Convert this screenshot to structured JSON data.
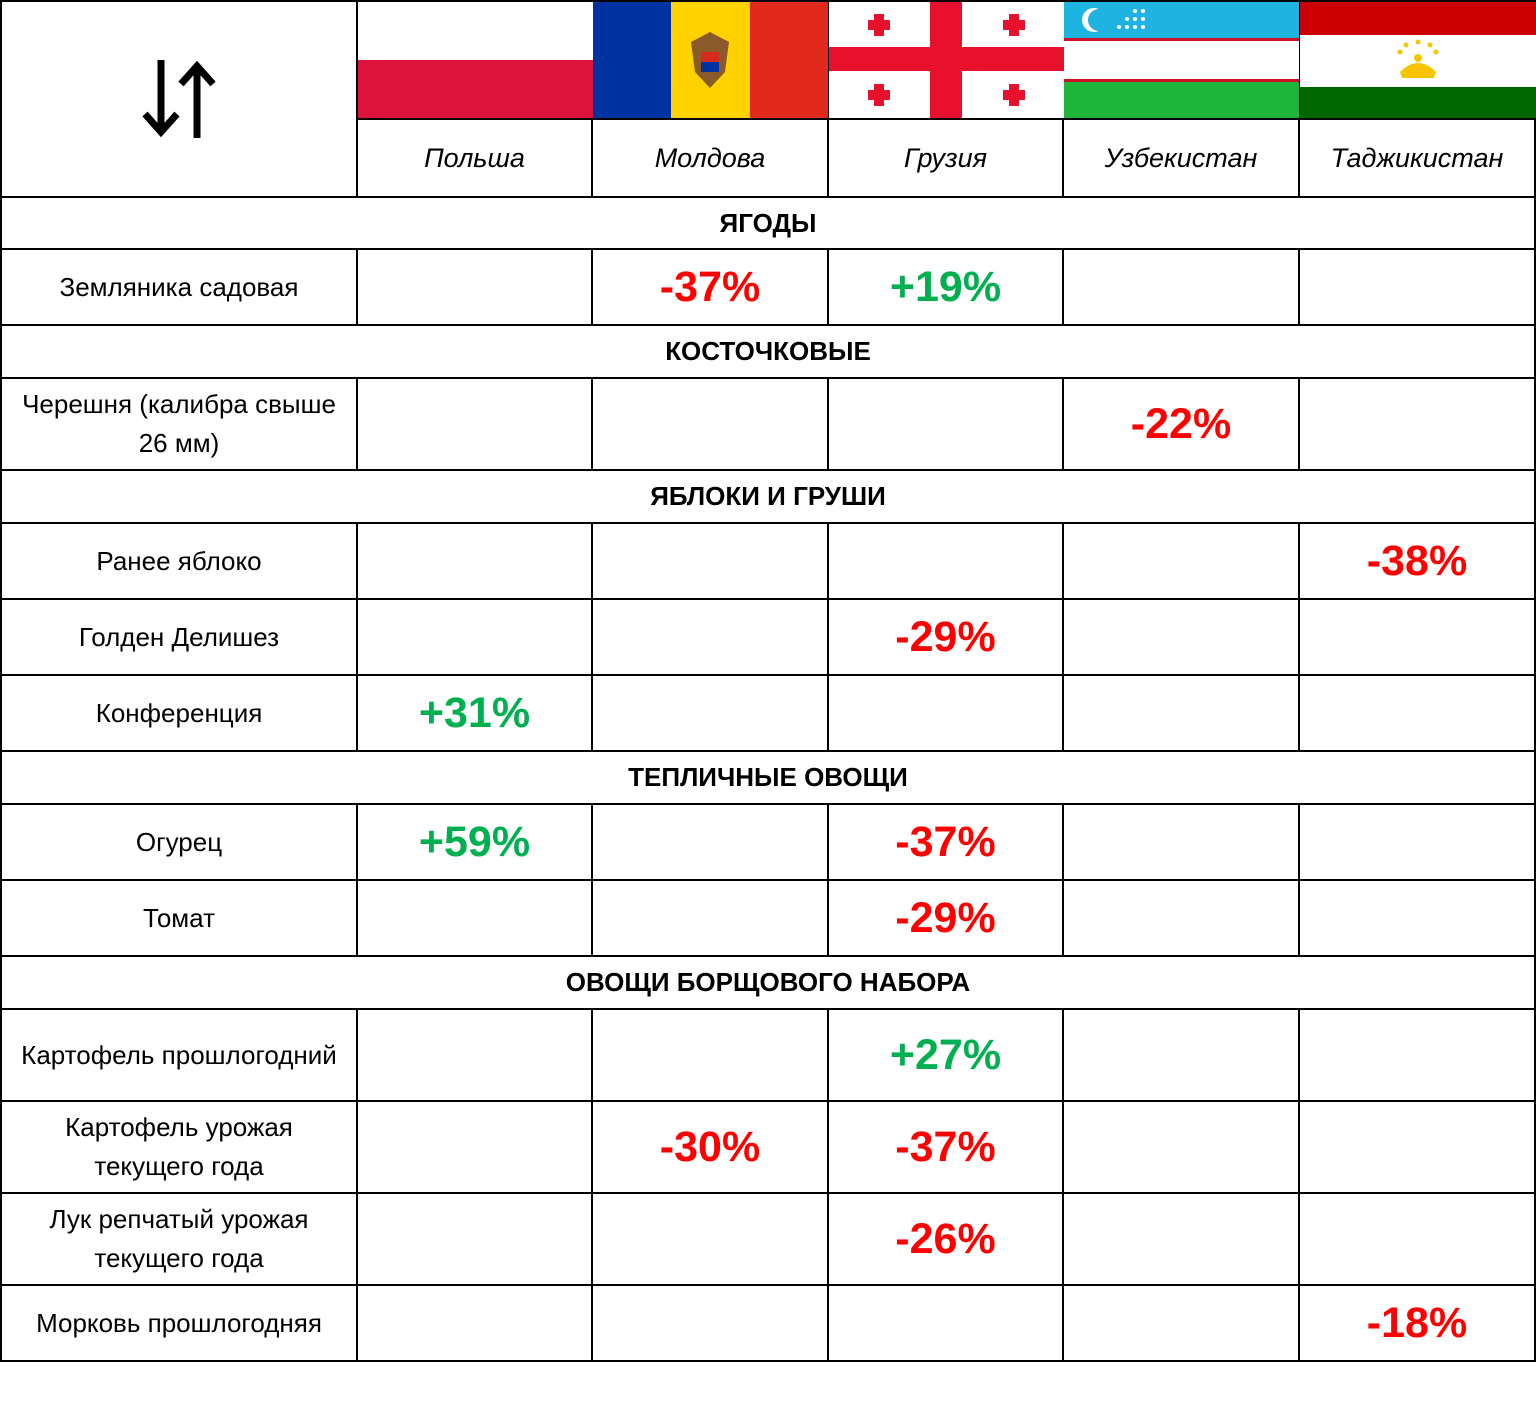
{
  "header": {
    "countries": [
      "Польша",
      "Молдова",
      "Грузия",
      "Узбекистан",
      "Таджикистан"
    ]
  },
  "sections": [
    {
      "title": "ЯГОДЫ",
      "rows": [
        {
          "label": "Земляника садовая",
          "cells": [
            null,
            "-37%",
            "+19%",
            null,
            null
          ]
        }
      ]
    },
    {
      "title": "КОСТОЧКОВЫЕ",
      "rows": [
        {
          "label": "Черешня (калибра свыше 26 мм)",
          "cells": [
            null,
            null,
            null,
            "-22%",
            null
          ]
        }
      ]
    },
    {
      "title": "ЯБЛОКИ И ГРУШИ",
      "rows": [
        {
          "label": "Ранее яблоко",
          "cells": [
            null,
            null,
            null,
            null,
            "-38%"
          ]
        },
        {
          "label": "Голден Делишез",
          "cells": [
            null,
            null,
            "-29%",
            null,
            null
          ]
        },
        {
          "label": "Конференция",
          "cells": [
            "+31%",
            null,
            null,
            null,
            null
          ]
        }
      ]
    },
    {
      "title": "ТЕПЛИЧНЫЕ ОВОЩИ",
      "rows": [
        {
          "label": "Огурец",
          "cells": [
            "+59%",
            null,
            "-37%",
            null,
            null
          ]
        },
        {
          "label": "Томат",
          "cells": [
            null,
            null,
            "-29%",
            null,
            null
          ]
        }
      ]
    },
    {
      "title": "ОВОЩИ БОРЩОВОГО НАБОРА",
      "rows": [
        {
          "label": "Картофель прошлогодний",
          "cells": [
            null,
            null,
            "+27%",
            null,
            null
          ]
        },
        {
          "label": "Картофель урожая текущего года",
          "cells": [
            null,
            "-30%",
            "-37%",
            null,
            null
          ]
        },
        {
          "label": "Лук репчатый урожая текущего года",
          "cells": [
            null,
            null,
            "-26%",
            null,
            null
          ]
        },
        {
          "label": "Морковь прошлогодняя",
          "cells": [
            null,
            null,
            null,
            null,
            "-18%"
          ]
        }
      ]
    }
  ]
}
